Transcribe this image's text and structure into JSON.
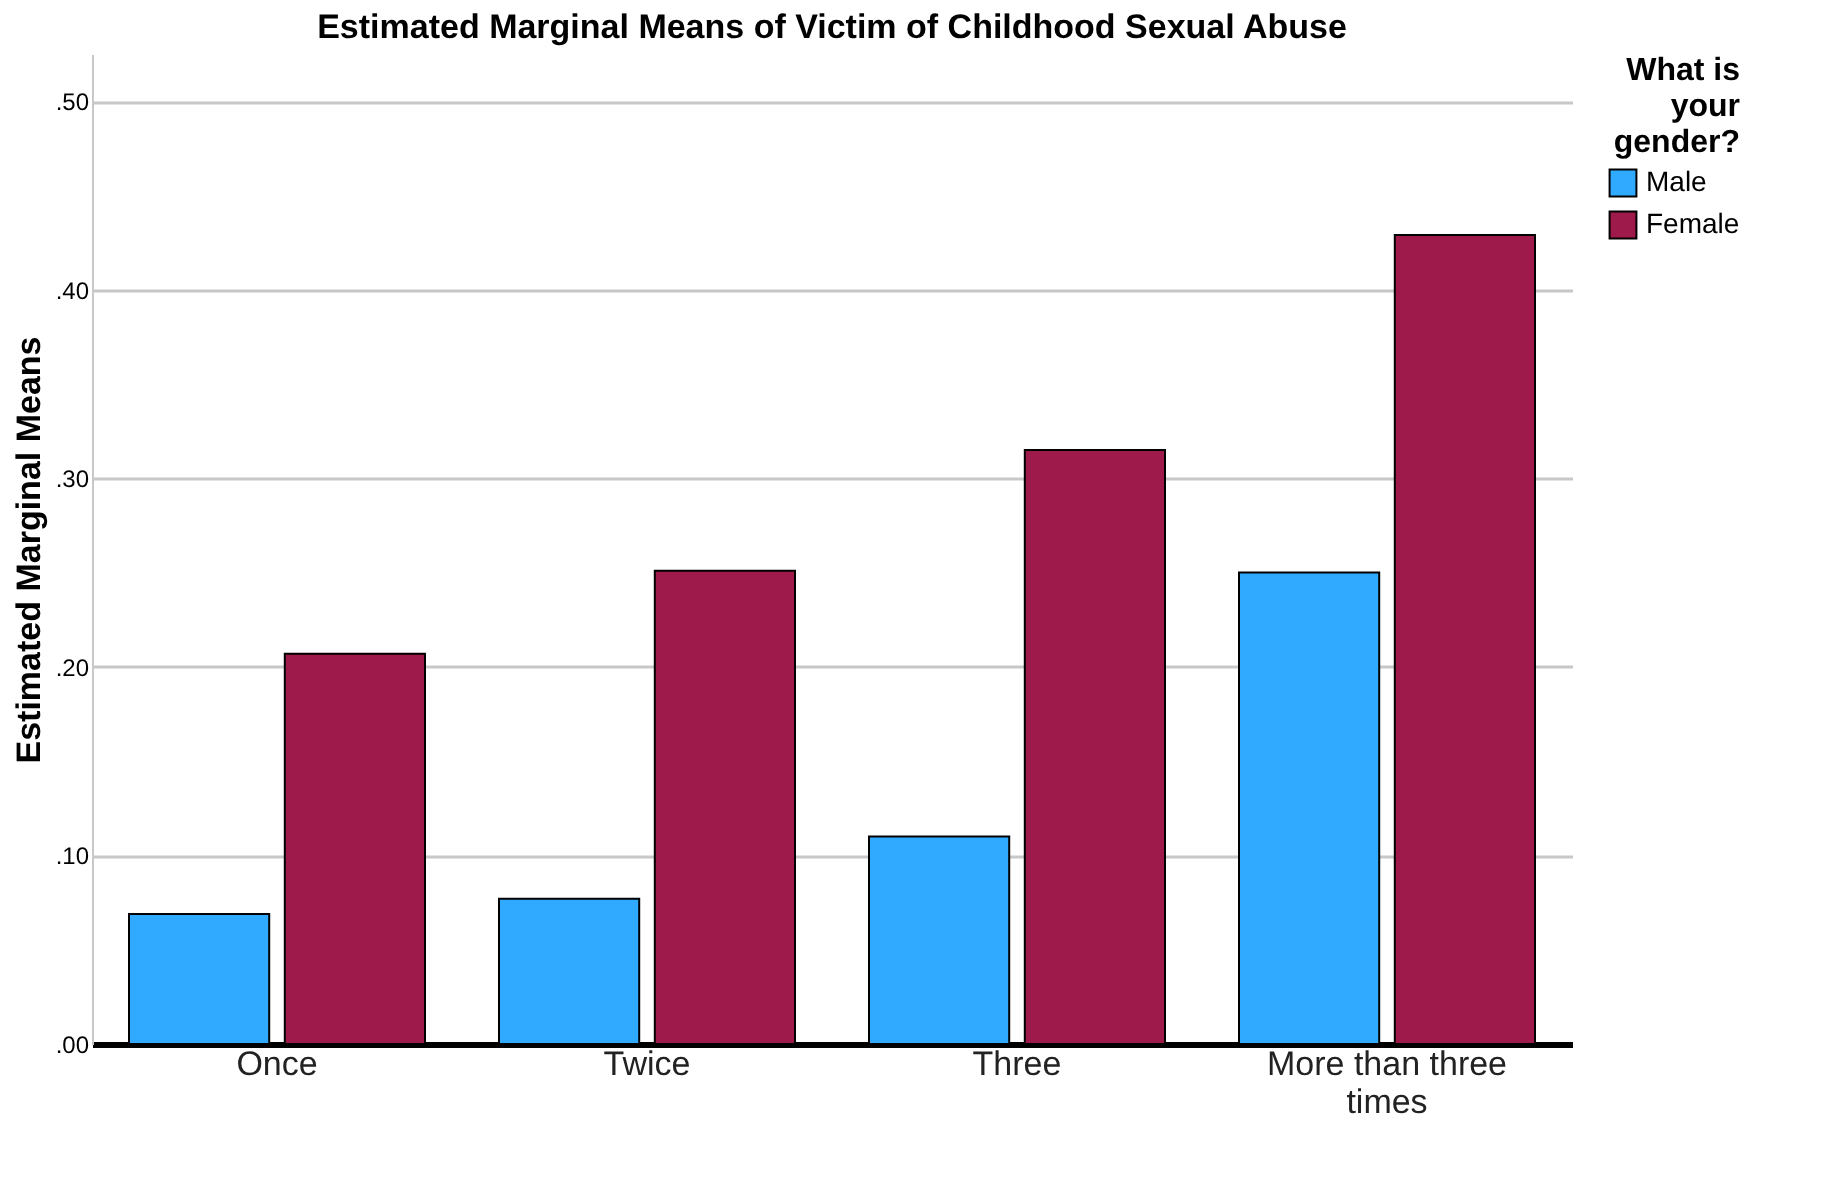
{
  "chart_data": {
    "type": "bar",
    "title": "Estimated Marginal Means of Victim of Childhood Sexual Abuse",
    "ylabel": "Estimated Marginal Means",
    "legend_title": "What is your gender?",
    "categories": [
      "Once",
      "Twice",
      "Three",
      "More than three times"
    ],
    "series": [
      {
        "name": "Male",
        "color": "#30aaff",
        "values": [
          0.069,
          0.077,
          0.11,
          0.25
        ]
      },
      {
        "name": "Female",
        "color": "#9e1a4b",
        "values": [
          0.207,
          0.251,
          0.315,
          0.429
        ]
      }
    ],
    "ylim": [
      0,
      0.525
    ],
    "yticks": [
      {
        "value": 0,
        "label": ".00"
      },
      {
        "value": 0.1,
        "label": ".10"
      },
      {
        "value": 0.2,
        "label": ".20"
      },
      {
        "value": 0.3,
        "label": ".30"
      },
      {
        "value": 0.4,
        "label": ".40"
      },
      {
        "value": 0.5,
        "label": ".50"
      }
    ],
    "grid": "y",
    "legend": "top right"
  }
}
